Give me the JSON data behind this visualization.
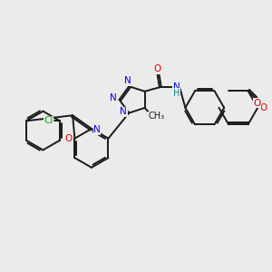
{
  "background_color": "#ebebeb",
  "bond_color": "#1a1a1a",
  "bond_width": 1.4,
  "dbo": 0.065,
  "colors": {
    "N": "#0000ee",
    "O": "#dd0000",
    "Cl": "#00aa00",
    "H": "#008888",
    "C": "#1a1a1a"
  },
  "fs": 7.5
}
